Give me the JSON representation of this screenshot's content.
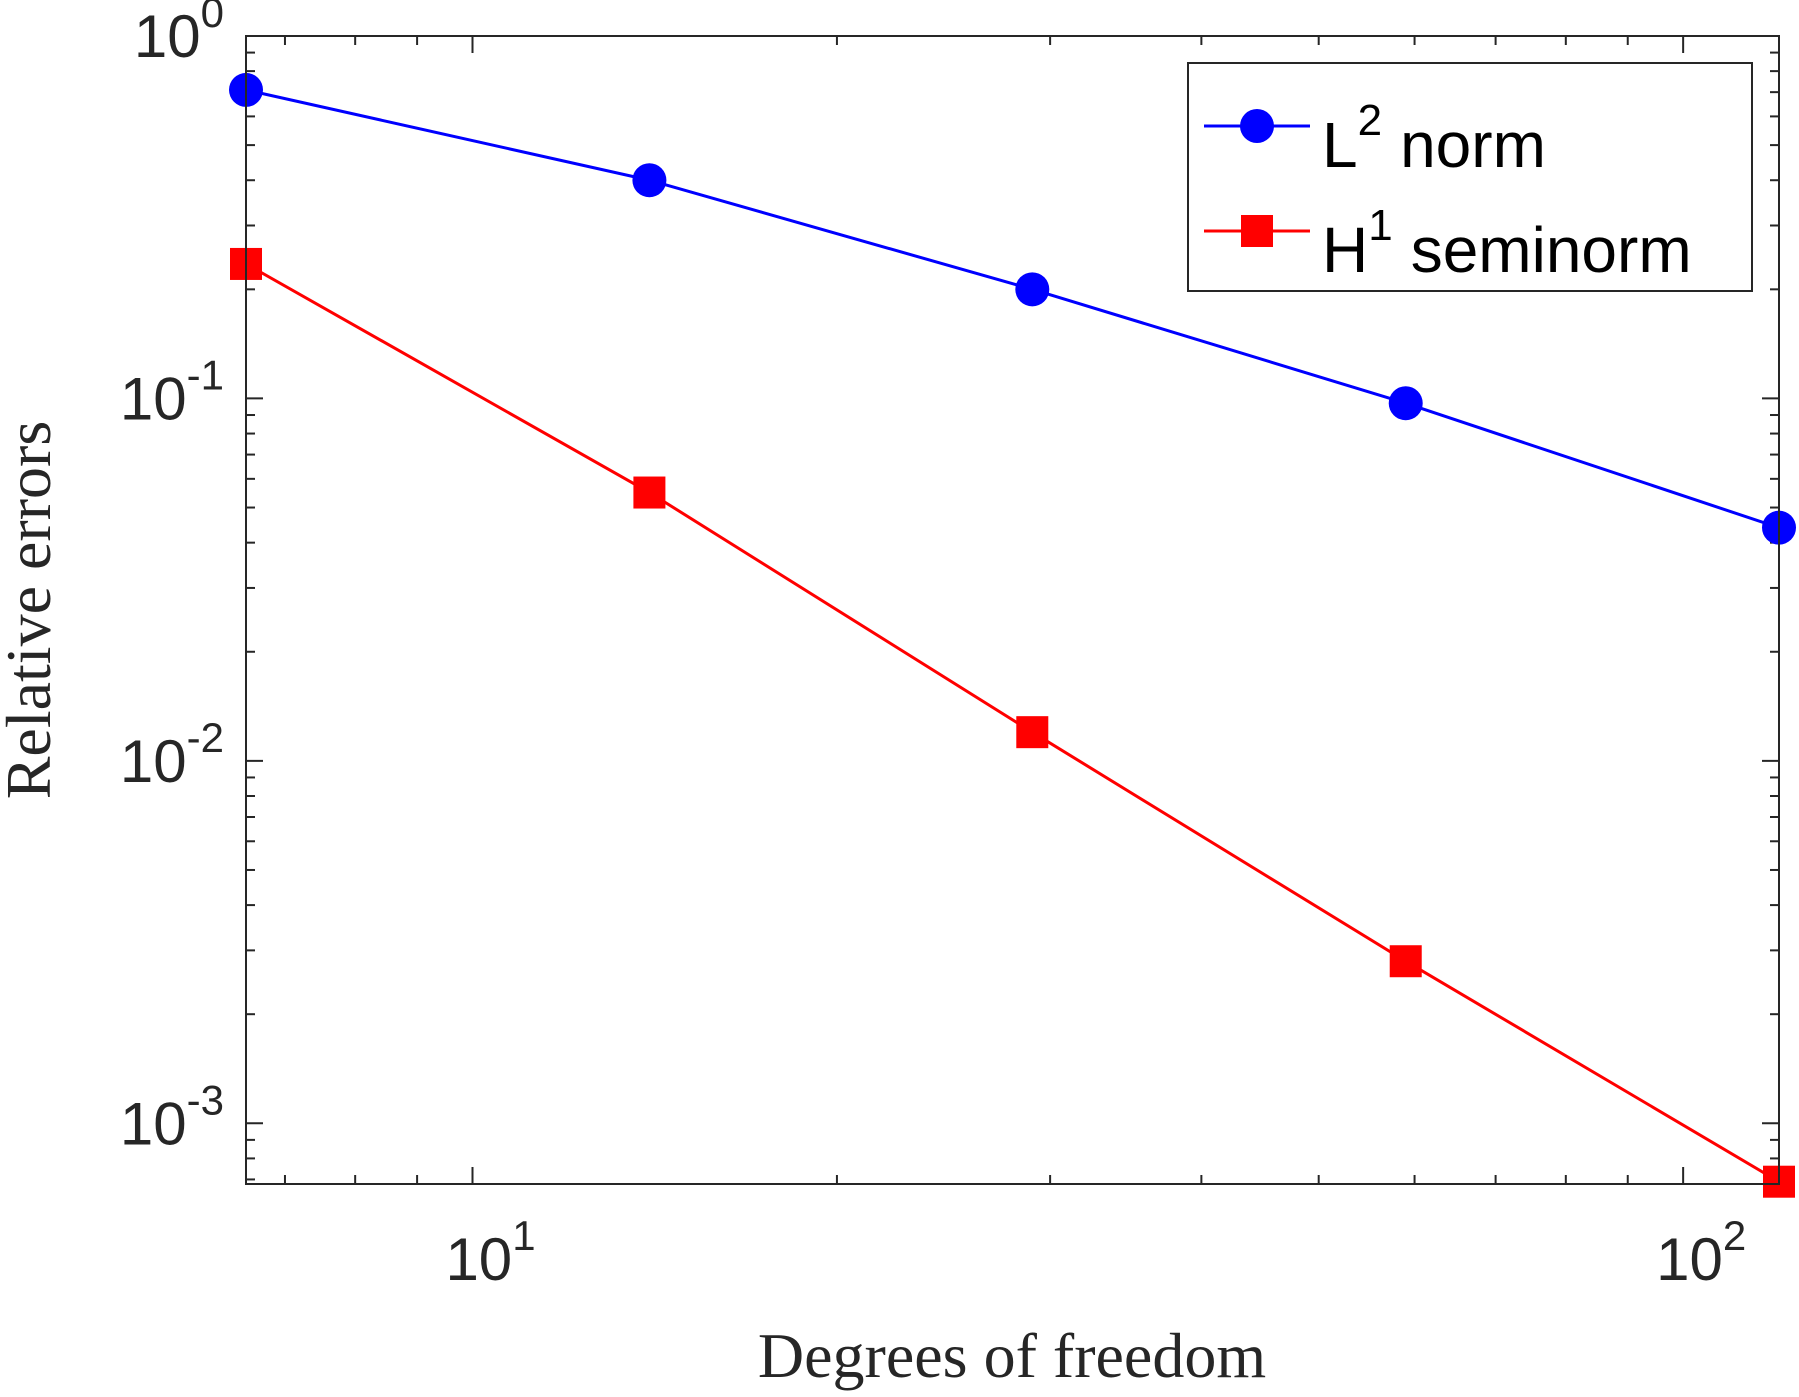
{
  "chart_data": {
    "type": "line",
    "xscale": "log",
    "yscale": "log",
    "xlim": [
      6.5,
      120
    ],
    "ylim": [
      0.00068,
      1.0
    ],
    "xlabel": "Degrees of freedom",
    "ylabel": "Relative errors",
    "x_ticks": [
      {
        "value": 10,
        "base": "10",
        "exp": "1"
      },
      {
        "value": 100,
        "base": "10",
        "exp": "2"
      }
    ],
    "y_ticks": [
      {
        "value": 1,
        "base": "10",
        "exp": "0"
      },
      {
        "value": 0.1,
        "base": "10",
        "exp": "-1"
      },
      {
        "value": 0.01,
        "base": "10",
        "exp": "-2"
      },
      {
        "value": 0.001,
        "base": "10",
        "exp": "-3"
      }
    ],
    "series": [
      {
        "name": "L2 norm",
        "label_base": "L",
        "label_sup": "2",
        "label_rest": "norm",
        "color": "#0000ff",
        "marker": "circle",
        "x": [
          6.5,
          14,
          29,
          59,
          120
        ],
        "y": [
          0.71,
          0.4,
          0.2,
          0.097,
          0.044
        ]
      },
      {
        "name": "H1 seminorm",
        "label_base": "H",
        "label_sup": "1",
        "label_rest": "seminorm",
        "color": "#ff0000",
        "marker": "square",
        "x": [
          6.5,
          14,
          29,
          59,
          120
        ],
        "y": [
          0.235,
          0.055,
          0.012,
          0.0028,
          0.00069
        ]
      }
    ],
    "legend_position": "top-right",
    "grid": false
  }
}
